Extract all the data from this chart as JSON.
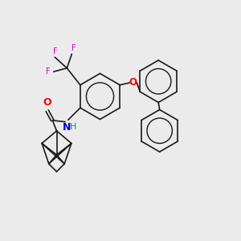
{
  "background_color": "#ebebeb",
  "bond_color": "#1a1a1a",
  "bond_width": 1.2,
  "O_color": "#ff0000",
  "N_color": "#0000cc",
  "F_color": "#cc00cc",
  "H_color": "#2e8b57",
  "figsize": [
    3.0,
    3.0
  ],
  "dpi": 100,
  "xlim": [
    0,
    10
  ],
  "ylim": [
    0,
    10
  ]
}
